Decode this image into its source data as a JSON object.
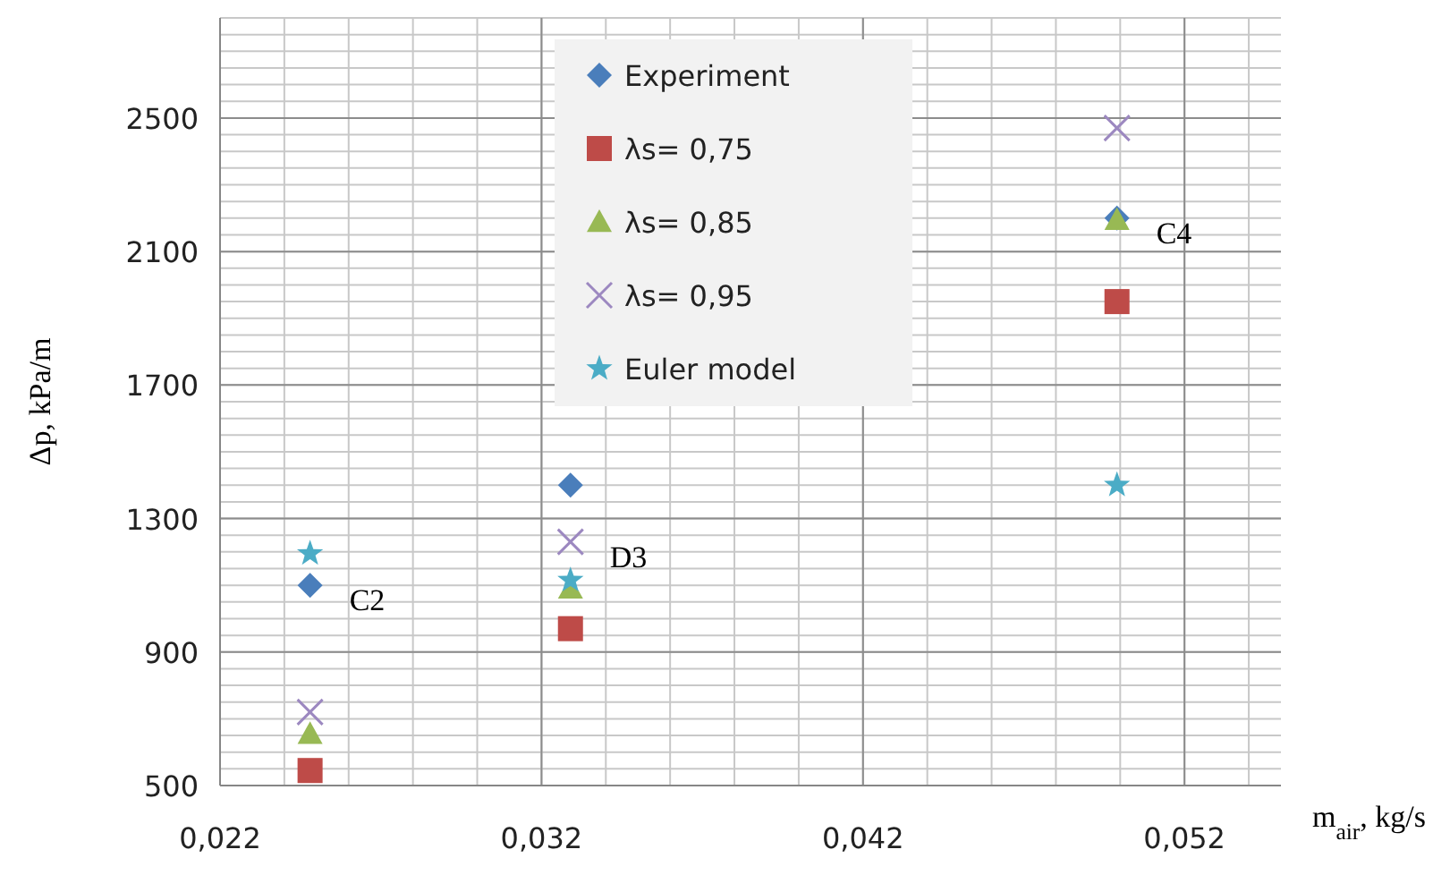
{
  "chart_data": {
    "type": "scatter",
    "xlabel": "m$_{air}$, kg/s",
    "ylabel": "Δp, kPa/m",
    "x": [
      0.0248,
      0.0329,
      0.0499
    ],
    "xlim": [
      0.022,
      0.055
    ],
    "xticks": [
      {
        "value": 0.022,
        "label": "0,022"
      },
      {
        "value": 0.032,
        "label": "0,032"
      },
      {
        "value": 0.042,
        "label": "0,042"
      },
      {
        "value": 0.052,
        "label": "0,052"
      }
    ],
    "ylim": [
      500,
      2800
    ],
    "yticks": [
      500,
      900,
      1300,
      1700,
      2100,
      2500
    ],
    "grid": true,
    "legend": "top",
    "series": [
      {
        "name": "Experiment",
        "color": "#4a7ebb",
        "marker": "diamond",
        "values": [
          1100,
          1400,
          2200
        ]
      },
      {
        "name": "λs= 0,75",
        "color": "#be4b48",
        "marker": "square",
        "values": [
          545,
          970,
          1950
        ]
      },
      {
        "name": "λs= 0,85",
        "color": "#98b954",
        "marker": "triangle",
        "values": [
          655,
          1090,
          2195
        ]
      },
      {
        "name": "λs= 0,95",
        "color": "#9c88c0",
        "marker": "cross",
        "values": [
          720,
          1230,
          2470
        ]
      },
      {
        "name": "Euler model",
        "color": "#4bacc6",
        "marker": "star",
        "values": [
          1195,
          1115,
          1400
        ]
      }
    ],
    "annotations": [
      {
        "text": "C2",
        "x": 0.0248,
        "y": 1100
      },
      {
        "text": "D3",
        "x": 0.0329,
        "y": 1230
      },
      {
        "text": "C4",
        "x": 0.0499,
        "y": 2200
      }
    ]
  }
}
